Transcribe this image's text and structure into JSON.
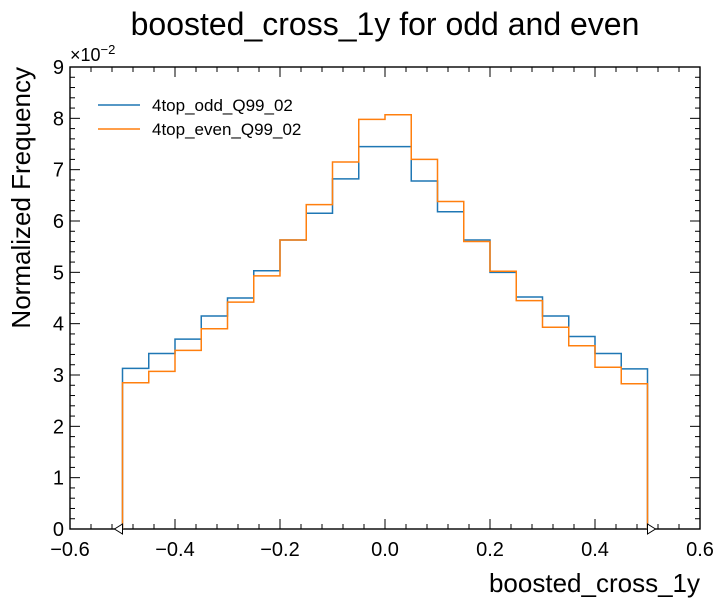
{
  "chart_data": {
    "type": "step-histogram",
    "title": "boosted_cross_1y for odd and even",
    "xlabel": "boosted_cross_1y",
    "ylabel": "Normalized Frequency",
    "y_scale_label": "×10",
    "y_scale_exponent": "−2",
    "xlim": [
      -0.6,
      0.6
    ],
    "ylim": [
      0,
      9
    ],
    "x_ticks": [
      -0.6,
      -0.4,
      -0.2,
      0.0,
      0.2,
      0.4,
      0.6
    ],
    "x_tick_labels": [
      "−0.6",
      "−0.4",
      "−0.2",
      "0.0",
      "0.2",
      "0.4",
      "0.6"
    ],
    "y_ticks": [
      0,
      1,
      2,
      3,
      4,
      5,
      6,
      7,
      8,
      9
    ],
    "y_tick_labels": [
      "0",
      "1",
      "2",
      "3",
      "4",
      "5",
      "6",
      "7",
      "8",
      "9"
    ],
    "bin_edges": [
      -0.5,
      -0.45,
      -0.4,
      -0.35,
      -0.3,
      -0.25,
      -0.2,
      -0.15,
      -0.1,
      -0.05,
      0.0,
      0.05,
      0.1,
      0.15,
      0.2,
      0.25,
      0.3,
      0.35,
      0.4,
      0.45,
      0.5
    ],
    "series": [
      {
        "name": "4top_odd_Q99_02",
        "color": "#1f77b4",
        "values": [
          3.13,
          3.42,
          3.7,
          4.15,
          4.5,
          5.03,
          5.63,
          6.15,
          6.82,
          7.45,
          7.45,
          6.78,
          6.18,
          5.63,
          5.0,
          4.52,
          4.15,
          3.75,
          3.42,
          3.12
        ]
      },
      {
        "name": "4top_even_Q99_02",
        "color": "#ff7f0e",
        "values": [
          2.85,
          3.07,
          3.48,
          3.9,
          4.42,
          4.93,
          5.63,
          6.32,
          7.15,
          7.98,
          8.07,
          7.2,
          6.38,
          5.6,
          5.02,
          4.45,
          3.93,
          3.57,
          3.15,
          2.83
        ]
      }
    ],
    "legend_position": "top-left",
    "grid": false
  }
}
